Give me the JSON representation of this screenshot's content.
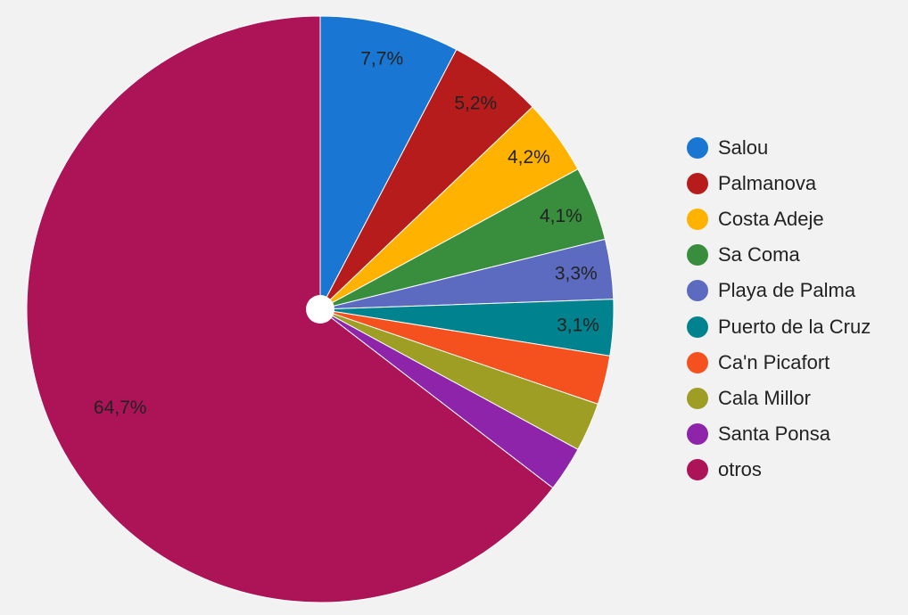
{
  "chart_data": {
    "type": "pie",
    "title": "",
    "legend_position": "right",
    "series": [
      {
        "name": "Salou",
        "value": 7.7,
        "label": "7,7%",
        "color": "#1976d2"
      },
      {
        "name": "Palmanova",
        "value": 5.2,
        "label": "5,2%",
        "color": "#b71c1c"
      },
      {
        "name": "Costa Adeje",
        "value": 4.2,
        "label": "4,2%",
        "color": "#ffb300"
      },
      {
        "name": "Sa Coma",
        "value": 4.1,
        "label": "4,1%",
        "color": "#388e3c"
      },
      {
        "name": "Playa de Palma",
        "value": 3.3,
        "label": "3,3%",
        "color": "#5c6bc0"
      },
      {
        "name": "Puerto de la Cruz",
        "value": 3.1,
        "label": "3,1%",
        "color": "#00838f"
      },
      {
        "name": "Ca'n Picafort",
        "value": 2.7,
        "label": "",
        "color": "#f4511e"
      },
      {
        "name": "Cala Millor",
        "value": 2.7,
        "label": "",
        "color": "#9e9d24"
      },
      {
        "name": "Santa Ponsa",
        "value": 2.5,
        "label": "",
        "color": "#8e24aa"
      },
      {
        "name": "otros",
        "value": 64.7,
        "label": "64,7%",
        "color": "#ad1457"
      }
    ]
  }
}
